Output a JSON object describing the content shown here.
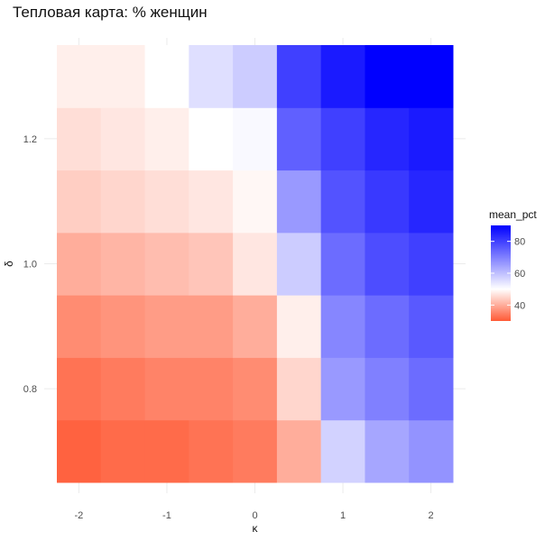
{
  "chart_data": {
    "type": "heatmap",
    "title": "Тепловая карта: % женщин",
    "xlabel": "κ",
    "ylabel": "δ",
    "x_values": [
      -2,
      -1.5,
      -1,
      -0.5,
      0,
      0.5,
      1,
      1.5,
      2
    ],
    "y_values": [
      0.7,
      0.8,
      0.9,
      1.0,
      1.1,
      1.2,
      1.3
    ],
    "x_ticks": [
      -2,
      -1,
      0,
      1,
      2
    ],
    "x_tick_labels": [
      "-2",
      "-1",
      "0",
      "1",
      "2"
    ],
    "y_ticks": [
      0.8,
      1.0,
      1.2
    ],
    "y_tick_labels": [
      "0.8",
      "1.0",
      "1.2"
    ],
    "values_by_row": [
      [
        31,
        32,
        32,
        33,
        34,
        40,
        57,
        64,
        67
      ],
      [
        33,
        34,
        35,
        35,
        36,
        45,
        66,
        70,
        73
      ],
      [
        36,
        37,
        38,
        38,
        40,
        48,
        69,
        73,
        76
      ],
      [
        40,
        41,
        42,
        43,
        47,
        58,
        73,
        78,
        80
      ],
      [
        44,
        45,
        46,
        47,
        49,
        66,
        77,
        81,
        84
      ],
      [
        46,
        47,
        48,
        50,
        51,
        75,
        80,
        84,
        86
      ],
      [
        48,
        48,
        50,
        55,
        58,
        80,
        86,
        90,
        90
      ]
    ],
    "legend": {
      "title": "mean_pct",
      "ticks": [
        40,
        60,
        80
      ],
      "tick_labels": [
        "40",
        "60",
        "80"
      ],
      "range": [
        30,
        90
      ],
      "midpoint": 50,
      "low_color": "#ff5a36",
      "mid_color": "#ffffff",
      "high_color": "#0000ff",
      "placement": "right"
    },
    "grid": true
  }
}
